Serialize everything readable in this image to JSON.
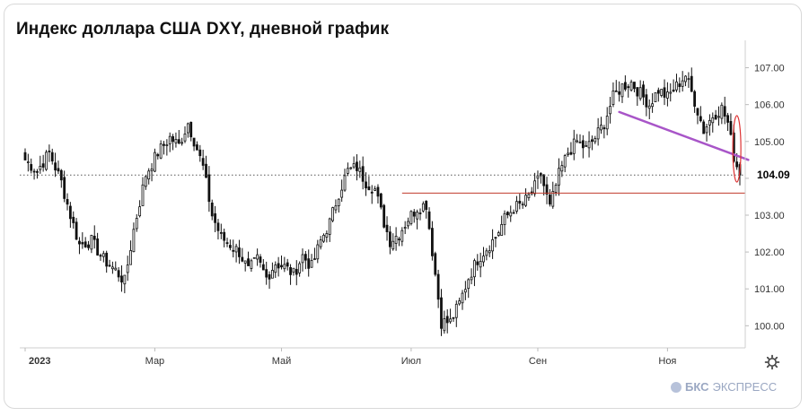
{
  "title": "Индекс доллара США DXY, дневной график",
  "brand": {
    "bold": "БКС",
    "rest": "ЭКСПРЕСС"
  },
  "last_price_label": "104.09",
  "icons": {
    "settings": "gear-icon"
  },
  "colors": {
    "candle": "#111111",
    "trendline": "#a855c8",
    "support": "#c0392b",
    "ellipse": "#d33",
    "grid": "#ececec",
    "axis_text": "#333333"
  },
  "chart_data": {
    "type": "candlestick",
    "title": "Индекс доллара США DXY, дневной график",
    "x_ticks": [
      {
        "label": "2023",
        "index": 0
      },
      {
        "label": "Мар",
        "index": 43
      },
      {
        "label": "Май",
        "index": 85
      },
      {
        "label": "Июл",
        "index": 128
      },
      {
        "label": "Сен",
        "index": 170
      },
      {
        "label": "Ноя",
        "index": 213
      }
    ],
    "y_ticks": [
      "100.00",
      "101.00",
      "102.00",
      "103.00",
      "104.00",
      "105.00",
      "106.00",
      "107.00"
    ],
    "ylim": [
      99.4,
      107.5
    ],
    "num_days": 238,
    "last_price": 104.09,
    "key_points": [
      [
        0,
        104.5
      ],
      [
        4,
        104.2
      ],
      [
        8,
        104.7
      ],
      [
        12,
        103.9
      ],
      [
        15,
        103.0
      ],
      [
        18,
        102.2
      ],
      [
        22,
        102.3
      ],
      [
        26,
        101.8
      ],
      [
        30,
        101.5
      ],
      [
        33,
        101.2
      ],
      [
        36,
        102.6
      ],
      [
        40,
        104.1
      ],
      [
        44,
        104.7
      ],
      [
        48,
        105.1
      ],
      [
        51,
        104.9
      ],
      [
        54,
        105.5
      ],
      [
        57,
        104.8
      ],
      [
        59,
        104.3
      ],
      [
        62,
        103.0
      ],
      [
        65,
        102.4
      ],
      [
        68,
        102.2
      ],
      [
        71,
        102.0
      ],
      [
        74,
        101.5
      ],
      [
        77,
        101.8
      ],
      [
        80,
        101.3
      ],
      [
        83,
        101.7
      ],
      [
        86,
        101.6
      ],
      [
        89,
        101.4
      ],
      [
        92,
        101.9
      ],
      [
        95,
        101.6
      ],
      [
        98,
        102.3
      ],
      [
        101,
        102.8
      ],
      [
        104,
        103.6
      ],
      [
        107,
        104.2
      ],
      [
        110,
        104.3
      ],
      [
        113,
        103.9
      ],
      [
        116,
        103.7
      ],
      [
        119,
        102.8
      ],
      [
        121,
        102.3
      ],
      [
        124,
        102.5
      ],
      [
        127,
        102.9
      ],
      [
        130,
        103.2
      ],
      [
        133,
        103.3
      ],
      [
        136,
        101.4
      ],
      [
        138,
        100.1
      ],
      [
        141,
        100.1
      ],
      [
        144,
        100.6
      ],
      [
        147,
        101.3
      ],
      [
        150,
        101.8
      ],
      [
        153,
        102.1
      ],
      [
        156,
        102.4
      ],
      [
        159,
        102.9
      ],
      [
        162,
        103.2
      ],
      [
        165,
        103.3
      ],
      [
        168,
        103.6
      ],
      [
        171,
        104.1
      ],
      [
        174,
        103.2
      ],
      [
        177,
        104.1
      ],
      [
        180,
        104.7
      ],
      [
        183,
        105.0
      ],
      [
        186,
        104.8
      ],
      [
        189,
        105.1
      ],
      [
        192,
        105.5
      ],
      [
        195,
        106.2
      ],
      [
        198,
        106.5
      ],
      [
        201,
        106.6
      ],
      [
        204,
        106.3
      ],
      [
        207,
        106.0
      ],
      [
        210,
        106.4
      ],
      [
        213,
        106.2
      ],
      [
        216,
        106.5
      ],
      [
        219,
        106.8
      ],
      [
        222,
        106.1
      ],
      [
        225,
        105.3
      ],
      [
        228,
        105.7
      ],
      [
        231,
        105.9
      ],
      [
        233,
        105.5
      ],
      [
        235,
        104.6
      ],
      [
        237,
        104.09
      ]
    ],
    "trendline": [
      [
        197,
        105.8
      ],
      [
        238,
        104.5
      ]
    ],
    "support_line": {
      "y": 103.6,
      "from_index": 125,
      "to_index": 238
    },
    "ellipse": {
      "index": 236,
      "y_top": 105.7,
      "y_bottom": 103.9
    },
    "current_price_line": 104.09
  }
}
